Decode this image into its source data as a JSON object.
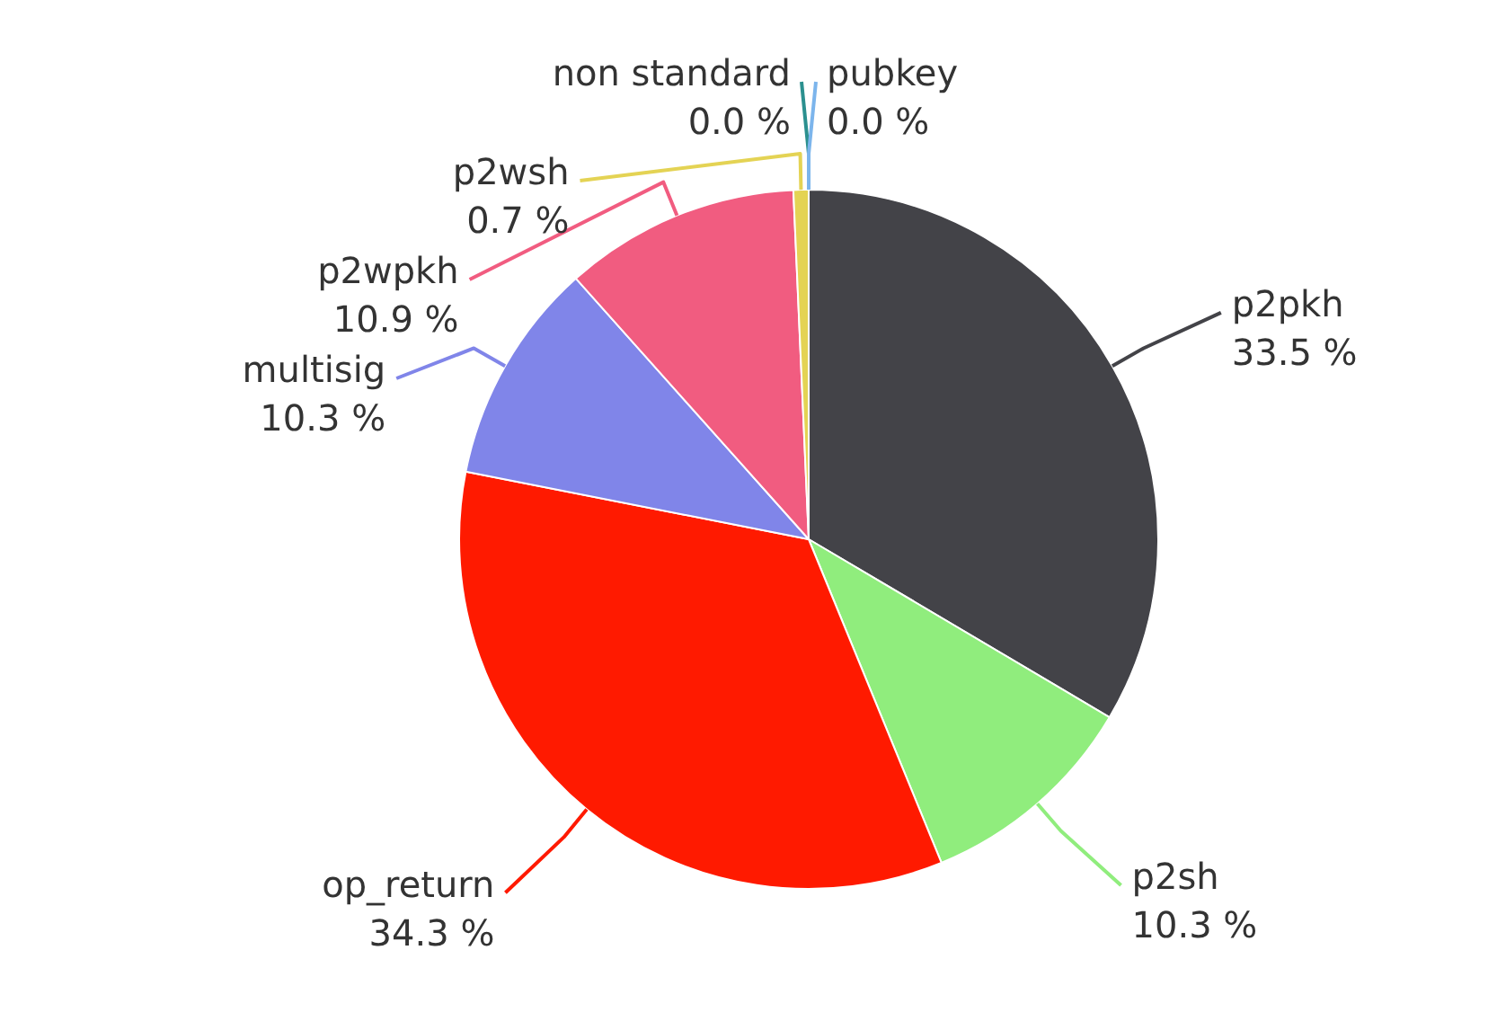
{
  "chart_data": {
    "type": "pie",
    "categories": [
      "p2pkh",
      "p2sh",
      "op_return",
      "multisig",
      "p2wpkh",
      "p2wsh",
      "non standard",
      "pubkey"
    ],
    "values": [
      33.5,
      10.3,
      34.3,
      10.3,
      10.9,
      0.7,
      0.0,
      0.0
    ],
    "colors": [
      "#434348",
      "#90ed7d",
      "#ff1a00",
      "#8085e9",
      "#f15c80",
      "#e4d354",
      "#2b908f",
      "#7cb5ec"
    ],
    "value_labels": [
      "33.5 %",
      "10.3 %",
      "34.3 %",
      "10.3 %",
      "10.9 %",
      "0.7 %",
      "0.0 %",
      "0.0 %"
    ],
    "legend": false
  }
}
